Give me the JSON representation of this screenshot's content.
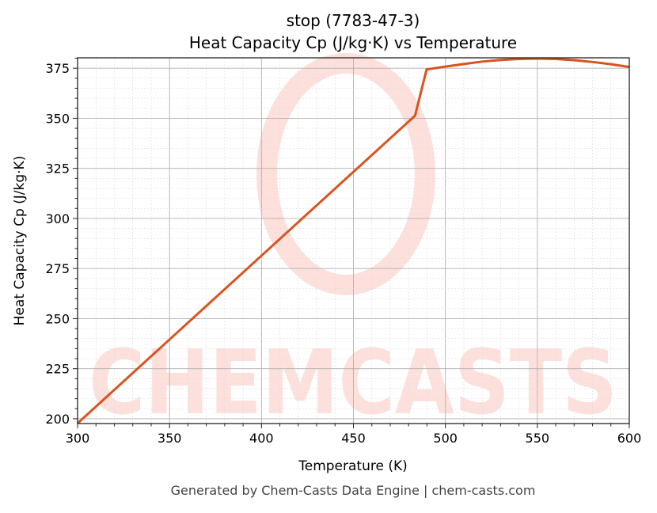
{
  "chart_data": {
    "type": "line",
    "title": "stop (7783-47-3)",
    "subtitle": "Heat Capacity Cp (J/kg·K) vs Temperature",
    "xlabel": "Temperature (K)",
    "ylabel": "Heat Capacity Cp (J/kg·K)",
    "xlim": [
      300,
      600
    ],
    "ylim": [
      197.6,
      380.2
    ],
    "xticks": [
      300,
      350,
      400,
      450,
      500,
      550,
      600
    ],
    "yticks": [
      200,
      225,
      250,
      275,
      300,
      325,
      350,
      375
    ],
    "grid": true,
    "line_color": "#d9531e",
    "series": [
      {
        "x": [
          300,
          483.5,
          489.8,
          500,
          510,
          520,
          530,
          540,
          550,
          560,
          570,
          580,
          590,
          600
        ],
        "y": [
          197.7,
          351.3,
          374.4,
          375.8,
          377.1,
          378.3,
          379.1,
          379.6,
          379.8,
          379.6,
          379.0,
          378.1,
          377.0,
          375.6
        ]
      }
    ],
    "watermark": "CHEMCASTS",
    "watermark_color": "#fde0dc"
  },
  "footer": "Generated by Chem-Casts Data Engine | chem-casts.com"
}
